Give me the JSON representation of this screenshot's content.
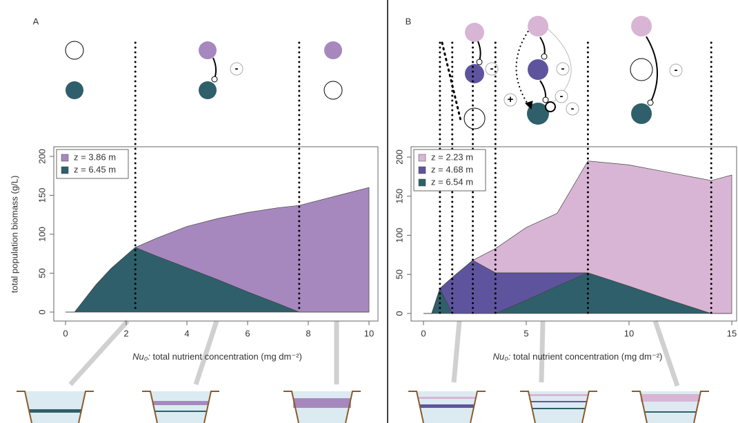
{
  "chart_data": [
    {
      "type": "area",
      "panel": "A",
      "ylabel": "total population biomass (g/L)",
      "xlabel_symbol": "Nu₀:",
      "xlabel": "total nutrient concentration (mg dm⁻²)",
      "x": [
        0,
        0.3,
        0.6,
        1,
        1.5,
        2,
        2.3,
        3,
        4,
        5,
        6,
        7,
        7.7,
        8,
        9,
        10
      ],
      "series": [
        {
          "name": "z = 3.86 m",
          "color": "#a688be",
          "values": [
            0,
            0,
            0,
            0,
            0,
            0,
            0,
            23,
            53,
            78,
            102,
            123,
            137,
            140,
            150,
            160
          ]
        },
        {
          "name": "z = 6.45 m",
          "color": "#2f5f6b",
          "values": [
            0,
            0,
            15,
            35,
            56,
            73,
            83,
            72,
            57,
            42,
            26,
            11,
            0,
            0,
            0,
            0
          ]
        }
      ],
      "xlim": [
        0,
        10
      ],
      "ylim": [
        0,
        200
      ],
      "xticks": [
        0,
        2,
        4,
        6,
        8,
        10
      ],
      "yticks": [
        0,
        50,
        100,
        150,
        200
      ],
      "dotted_x": [
        2.3,
        7.7
      ],
      "legend": "upper left"
    },
    {
      "type": "area",
      "panel": "B",
      "xlabel_symbol": "Nu₀:",
      "xlabel": "total nutrient concentration (mg dm⁻²)",
      "x": [
        0,
        0.4,
        0.8,
        1.4,
        2.4,
        3.5,
        5,
        6.5,
        8,
        10,
        12,
        14,
        15
      ],
      "series": [
        {
          "name": "z = 2.23 m",
          "color": "#d8b5d5",
          "values": [
            0,
            0,
            0,
            0,
            0,
            31,
            58,
            76,
            143,
            155,
            163,
            170,
            177
          ]
        },
        {
          "name": "z = 4.68 m",
          "color": "#5e549e",
          "values": [
            0,
            0,
            0,
            46,
            68,
            52,
            35,
            17,
            0,
            0,
            0,
            0,
            0
          ]
        },
        {
          "name": "z = 6.54 m",
          "color": "#2f5f6b",
          "values": [
            0,
            0,
            32,
            0,
            0,
            0,
            17,
            35,
            52,
            35,
            17,
            0,
            0
          ]
        }
      ],
      "xlim": [
        0,
        15
      ],
      "ylim": [
        0,
        200
      ],
      "xticks": [
        0,
        5,
        10,
        15
      ],
      "yticks": [
        0,
        50,
        100,
        150,
        200
      ],
      "dotted_x": [
        0.8,
        1.4,
        2.4,
        3.5,
        8,
        14
      ],
      "legend": "upper left"
    }
  ],
  "interaction_signs": {
    "negative": "-",
    "positive": "+"
  }
}
